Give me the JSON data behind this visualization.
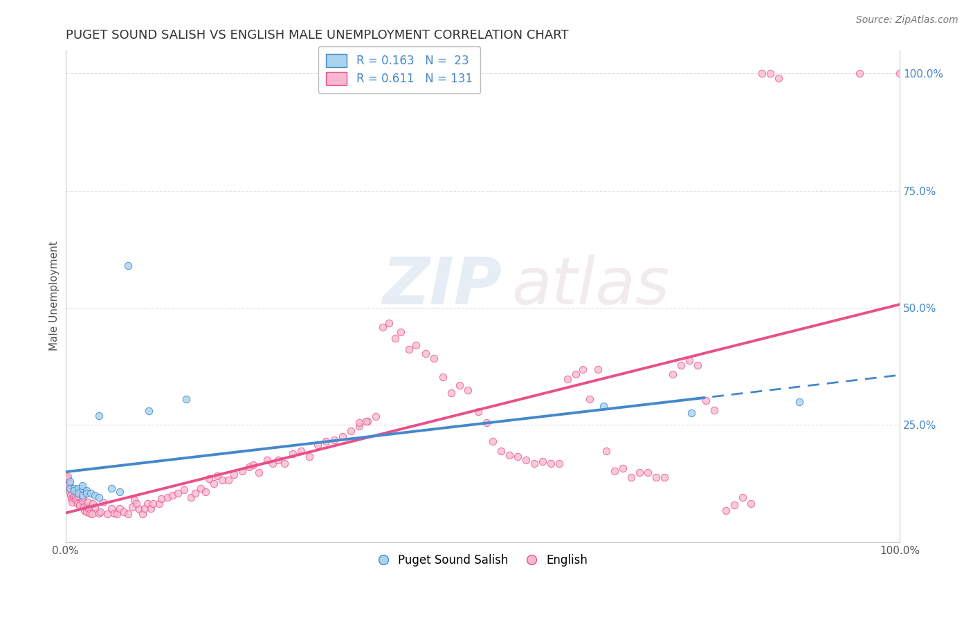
{
  "title": "PUGET SOUND SALISH VS ENGLISH MALE UNEMPLOYMENT CORRELATION CHART",
  "source": "Source: ZipAtlas.com",
  "ylabel": "Male Unemployment",
  "xlim": [
    0.0,
    1.0
  ],
  "ylim": [
    0.0,
    1.05
  ],
  "watermark": "ZIPatlas",
  "salish_color": "#a8d4f0",
  "english_color": "#f9b8d0",
  "salish_line_color": "#4488cc",
  "english_line_color": "#e8508a",
  "salish_points": [
    [
      0.005,
      0.115
    ],
    [
      0.005,
      0.13
    ],
    [
      0.01,
      0.115
    ],
    [
      0.01,
      0.11
    ],
    [
      0.015,
      0.115
    ],
    [
      0.015,
      0.105
    ],
    [
      0.02,
      0.115
    ],
    [
      0.02,
      0.12
    ],
    [
      0.02,
      0.1
    ],
    [
      0.025,
      0.11
    ],
    [
      0.025,
      0.105
    ],
    [
      0.03,
      0.105
    ],
    [
      0.035,
      0.1
    ],
    [
      0.04,
      0.095
    ],
    [
      0.04,
      0.27
    ],
    [
      0.055,
      0.115
    ],
    [
      0.065,
      0.108
    ],
    [
      0.075,
      0.59
    ],
    [
      0.1,
      0.28
    ],
    [
      0.145,
      0.305
    ],
    [
      0.645,
      0.29
    ],
    [
      0.75,
      0.275
    ],
    [
      0.88,
      0.3
    ]
  ],
  "english_points": [
    [
      0.002,
      0.135
    ],
    [
      0.003,
      0.14
    ],
    [
      0.004,
      0.125
    ],
    [
      0.005,
      0.115
    ],
    [
      0.005,
      0.108
    ],
    [
      0.006,
      0.1
    ],
    [
      0.007,
      0.092
    ],
    [
      0.008,
      0.085
    ],
    [
      0.009,
      0.095
    ],
    [
      0.01,
      0.098
    ],
    [
      0.012,
      0.095
    ],
    [
      0.013,
      0.09
    ],
    [
      0.014,
      0.082
    ],
    [
      0.015,
      0.098
    ],
    [
      0.016,
      0.105
    ],
    [
      0.017,
      0.08
    ],
    [
      0.02,
      0.088
    ],
    [
      0.021,
      0.095
    ],
    [
      0.022,
      0.075
    ],
    [
      0.023,
      0.068
    ],
    [
      0.025,
      0.065
    ],
    [
      0.026,
      0.075
    ],
    [
      0.027,
      0.085
    ],
    [
      0.028,
      0.072
    ],
    [
      0.029,
      0.062
    ],
    [
      0.032,
      0.06
    ],
    [
      0.033,
      0.082
    ],
    [
      0.035,
      0.075
    ],
    [
      0.04,
      0.062
    ],
    [
      0.042,
      0.065
    ],
    [
      0.045,
      0.085
    ],
    [
      0.05,
      0.06
    ],
    [
      0.055,
      0.072
    ],
    [
      0.058,
      0.062
    ],
    [
      0.062,
      0.06
    ],
    [
      0.065,
      0.072
    ],
    [
      0.07,
      0.065
    ],
    [
      0.075,
      0.06
    ],
    [
      0.08,
      0.075
    ],
    [
      0.082,
      0.09
    ],
    [
      0.085,
      0.082
    ],
    [
      0.088,
      0.07
    ],
    [
      0.092,
      0.06
    ],
    [
      0.095,
      0.072
    ],
    [
      0.098,
      0.082
    ],
    [
      0.102,
      0.072
    ],
    [
      0.105,
      0.082
    ],
    [
      0.112,
      0.082
    ],
    [
      0.115,
      0.092
    ],
    [
      0.122,
      0.095
    ],
    [
      0.128,
      0.1
    ],
    [
      0.135,
      0.105
    ],
    [
      0.142,
      0.112
    ],
    [
      0.15,
      0.095
    ],
    [
      0.155,
      0.105
    ],
    [
      0.162,
      0.115
    ],
    [
      0.168,
      0.108
    ],
    [
      0.172,
      0.135
    ],
    [
      0.178,
      0.125
    ],
    [
      0.182,
      0.142
    ],
    [
      0.188,
      0.132
    ],
    [
      0.195,
      0.132
    ],
    [
      0.202,
      0.145
    ],
    [
      0.212,
      0.152
    ],
    [
      0.22,
      0.16
    ],
    [
      0.225,
      0.165
    ],
    [
      0.232,
      0.148
    ],
    [
      0.242,
      0.175
    ],
    [
      0.248,
      0.168
    ],
    [
      0.255,
      0.175
    ],
    [
      0.262,
      0.168
    ],
    [
      0.272,
      0.188
    ],
    [
      0.282,
      0.195
    ],
    [
      0.292,
      0.182
    ],
    [
      0.302,
      0.208
    ],
    [
      0.312,
      0.215
    ],
    [
      0.322,
      0.218
    ],
    [
      0.332,
      0.225
    ],
    [
      0.342,
      0.238
    ],
    [
      0.352,
      0.248
    ],
    [
      0.362,
      0.258
    ],
    [
      0.372,
      0.268
    ],
    [
      0.38,
      0.458
    ],
    [
      0.388,
      0.468
    ],
    [
      0.395,
      0.435
    ],
    [
      0.402,
      0.448
    ],
    [
      0.412,
      0.412
    ],
    [
      0.42,
      0.42
    ],
    [
      0.432,
      0.402
    ],
    [
      0.442,
      0.392
    ],
    [
      0.452,
      0.352
    ],
    [
      0.462,
      0.318
    ],
    [
      0.472,
      0.335
    ],
    [
      0.482,
      0.325
    ],
    [
      0.495,
      0.278
    ],
    [
      0.505,
      0.255
    ],
    [
      0.352,
      0.255
    ],
    [
      0.36,
      0.258
    ],
    [
      0.512,
      0.215
    ],
    [
      0.522,
      0.195
    ],
    [
      0.532,
      0.185
    ],
    [
      0.542,
      0.182
    ],
    [
      0.552,
      0.175
    ],
    [
      0.562,
      0.168
    ],
    [
      0.572,
      0.172
    ],
    [
      0.582,
      0.168
    ],
    [
      0.592,
      0.168
    ],
    [
      0.602,
      0.348
    ],
    [
      0.612,
      0.358
    ],
    [
      0.62,
      0.368
    ],
    [
      0.628,
      0.305
    ],
    [
      0.638,
      0.368
    ],
    [
      0.648,
      0.195
    ],
    [
      0.658,
      0.152
    ],
    [
      0.668,
      0.158
    ],
    [
      0.678,
      0.138
    ],
    [
      0.688,
      0.148
    ],
    [
      0.698,
      0.148
    ],
    [
      0.708,
      0.138
    ],
    [
      0.718,
      0.138
    ],
    [
      0.728,
      0.358
    ],
    [
      0.738,
      0.378
    ],
    [
      0.748,
      0.388
    ],
    [
      0.758,
      0.378
    ],
    [
      0.768,
      0.302
    ],
    [
      0.778,
      0.282
    ],
    [
      0.792,
      0.068
    ],
    [
      0.802,
      0.08
    ],
    [
      0.812,
      0.095
    ],
    [
      0.822,
      0.082
    ],
    [
      0.835,
      1.0
    ],
    [
      0.845,
      1.0
    ],
    [
      0.855,
      0.99
    ],
    [
      0.952,
      1.0
    ],
    [
      1.0,
      1.0
    ]
  ],
  "background_color": "#ffffff",
  "grid_color": "#dddddd",
  "title_color": "#333333",
  "right_tick_color": "#4488cc"
}
